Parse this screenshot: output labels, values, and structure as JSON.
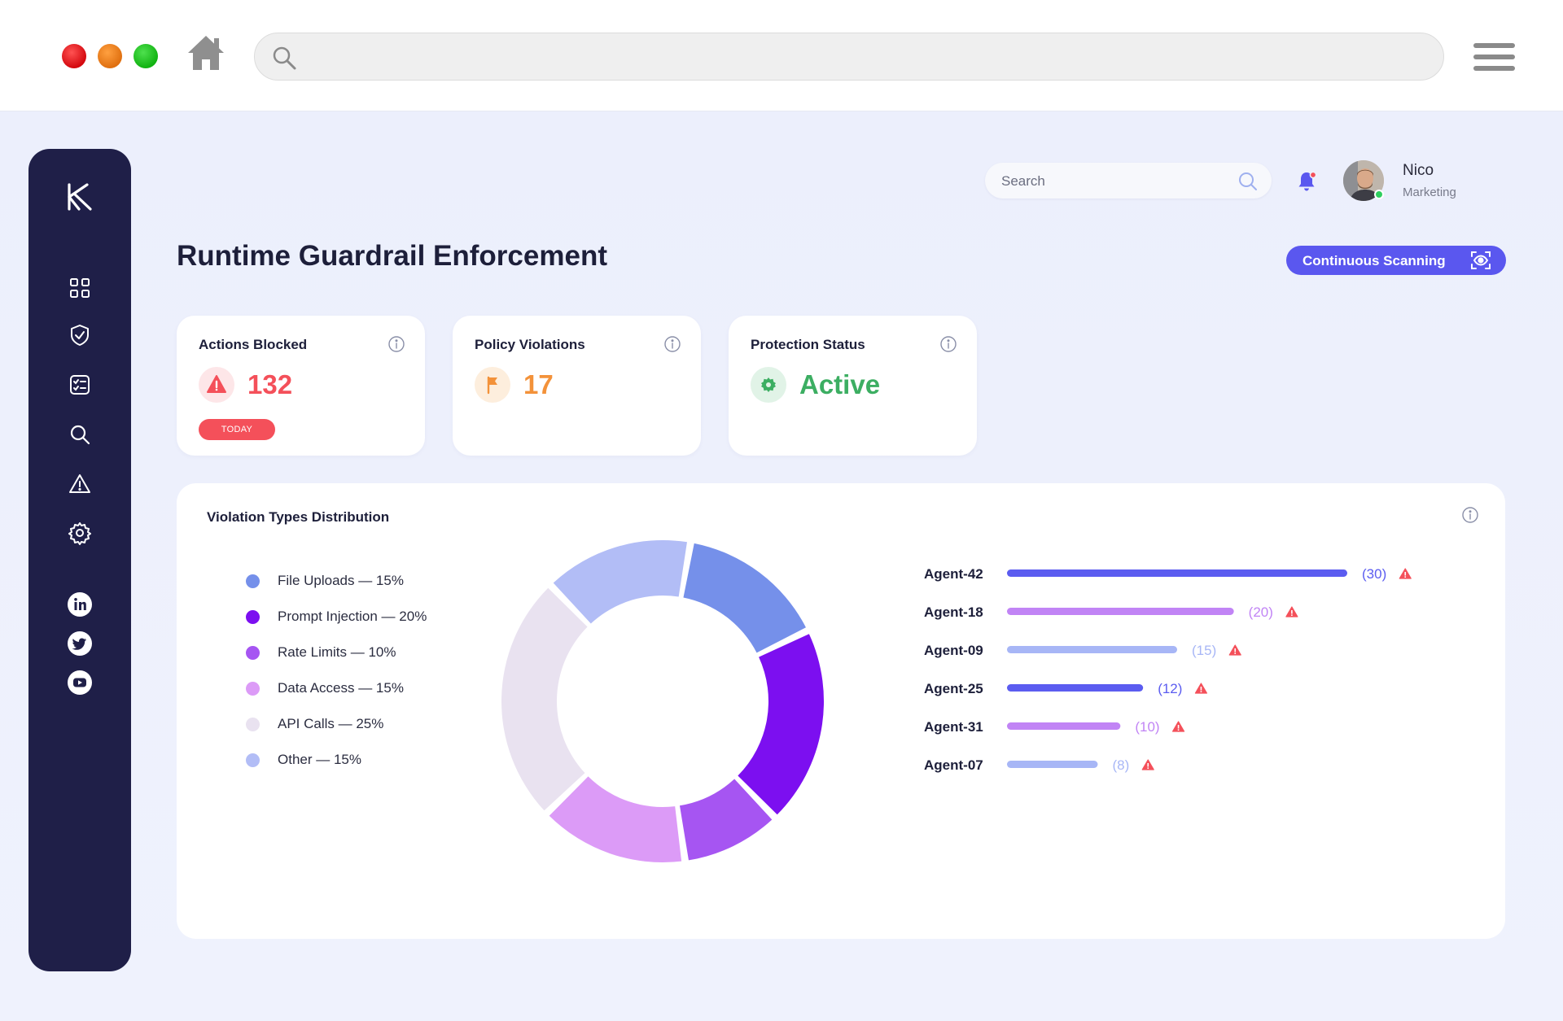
{
  "browser": {
    "traffic_colors": [
      "#e3151b",
      "#f08a24",
      "#1fc41f"
    ],
    "url": ""
  },
  "sidebar": {
    "logo": "k-logo-icon",
    "items": [
      {
        "icon": "grid-icon"
      },
      {
        "icon": "shield-check-icon"
      },
      {
        "icon": "checklist-icon"
      },
      {
        "icon": "search-icon"
      },
      {
        "icon": "warning-icon"
      },
      {
        "icon": "gear-icon"
      }
    ],
    "social": [
      {
        "icon": "linkedin-icon"
      },
      {
        "icon": "twitter-icon"
      },
      {
        "icon": "youtube-icon"
      }
    ]
  },
  "topbar": {
    "search_placeholder": "Search",
    "user_name": "Nico",
    "user_role": "Marketing",
    "notification_dot_color": "#f4505a"
  },
  "page": {
    "title": "Runtime Guardrail Enforcement",
    "scan_button_label": "Continuous Scanning"
  },
  "kpis": [
    {
      "title": "Actions Blocked",
      "value": "132",
      "badge_label": "TODAY",
      "color": "#f4505a",
      "icon": "alert-triangle-icon"
    },
    {
      "title": "Policy Violations",
      "value": "17",
      "color": "#f3923a",
      "icon": "flag-icon"
    },
    {
      "title": "Protection Status",
      "value": "Active",
      "color": "#3cae62",
      "icon": "gear-icon"
    }
  ],
  "distribution": {
    "title": "Violation Types Distribution",
    "legend": [
      {
        "label": "File Uploads — 15%",
        "color": "#7590ea"
      },
      {
        "label": "Prompt Injection — 20%",
        "color": "#7c0ff0"
      },
      {
        "label": "Rate Limits — 10%",
        "color": "#a655f2"
      },
      {
        "label": "Data Access — 15%",
        "color": "#dc9bf7"
      },
      {
        "label": "API Calls — 25%",
        "color": "#e9e2f0"
      },
      {
        "label": "Other — 15%",
        "color": "#b2bdf6"
      }
    ]
  },
  "chart_data": [
    {
      "type": "pie",
      "title": "",
      "categories": [
        "File Uploads",
        "Prompt Injection",
        "Rate Limits",
        "Data Access",
        "API Calls",
        "Other"
      ],
      "values": [
        15,
        20,
        10,
        15,
        25,
        15
      ],
      "colors": [
        "#7590ea",
        "#7c0ff0",
        "#a655f2",
        "#dc9bf7",
        "#e9e2f0",
        "#b2bdf6"
      ],
      "donut": true
    },
    {
      "type": "bar",
      "orientation": "horizontal",
      "categories": [
        "Agent-42",
        "Agent-18",
        "Agent-09",
        "Agent-25",
        "Agent-31",
        "Agent-07"
      ],
      "values": [
        30,
        20,
        15,
        12,
        10,
        8
      ],
      "value_labels": [
        "(30)",
        "(20)",
        "(15)",
        "(12)",
        "(10)",
        "(8)"
      ],
      "colors": [
        "#5b5cf0",
        "#c184f5",
        "#a7b6f6",
        "#5b5cf0",
        "#c184f5",
        "#a7b6f6"
      ],
      "alert_icon": "warning-icon",
      "alert_color": "#f4505a"
    }
  ]
}
